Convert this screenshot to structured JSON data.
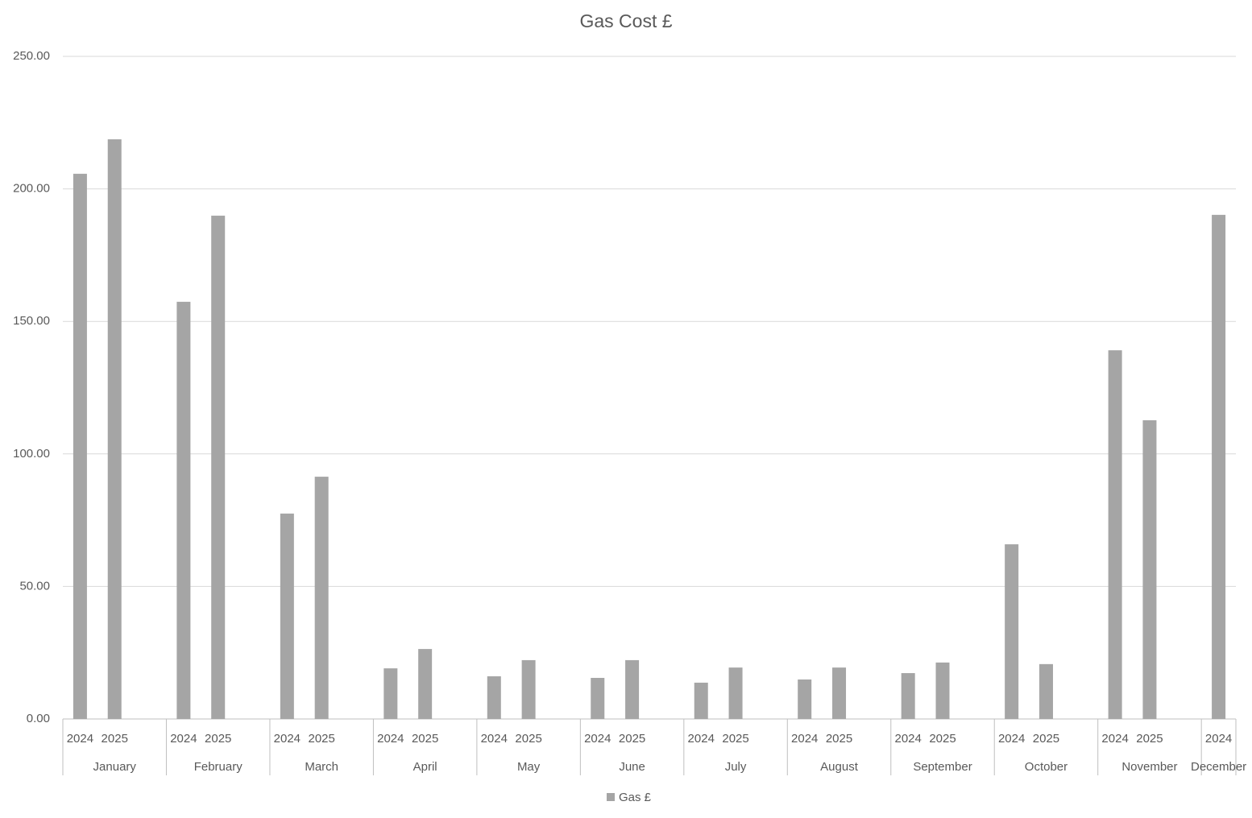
{
  "chart_data": {
    "type": "bar",
    "title": "Gas Cost £",
    "series_name": "Gas £",
    "color": "#a5a5a5",
    "groups": [
      {
        "label": "January",
        "categories": [
          "2024",
          "2025",
          null
        ],
        "values": [
          205.7,
          218.7,
          null
        ]
      },
      {
        "label": "February",
        "categories": [
          "2024",
          "2025",
          null
        ],
        "values": [
          157.4,
          189.9,
          null
        ]
      },
      {
        "label": "March",
        "categories": [
          "2024",
          "2025",
          null
        ],
        "values": [
          77.5,
          91.4,
          null
        ]
      },
      {
        "label": "April",
        "categories": [
          "2024",
          "2025",
          null
        ],
        "values": [
          19.1,
          26.4,
          null
        ]
      },
      {
        "label": "May",
        "categories": [
          "2024",
          "2025",
          null
        ],
        "values": [
          16.1,
          22.2,
          null
        ]
      },
      {
        "label": "June",
        "categories": [
          "2024",
          "2025",
          null
        ],
        "values": [
          15.5,
          22.2,
          null
        ]
      },
      {
        "label": "July",
        "categories": [
          "2024",
          "2025",
          null
        ],
        "values": [
          13.7,
          19.4,
          null
        ]
      },
      {
        "label": "August",
        "categories": [
          "2024",
          "2025",
          null
        ],
        "values": [
          14.9,
          19.4,
          null
        ]
      },
      {
        "label": "September",
        "categories": [
          "2024",
          "2025",
          null
        ],
        "values": [
          17.3,
          21.3,
          null
        ]
      },
      {
        "label": "October",
        "categories": [
          "2024",
          "2025",
          null
        ],
        "values": [
          65.9,
          20.7,
          null
        ]
      },
      {
        "label": "November",
        "categories": [
          "2024",
          "2025",
          null
        ],
        "values": [
          139.1,
          112.7,
          null
        ]
      },
      {
        "label": "December",
        "categories": [
          "2024"
        ],
        "values": [
          190.2
        ]
      }
    ],
    "ylim": [
      0,
      250
    ],
    "yticks": [
      {
        "value": 0,
        "label": "0.00"
      },
      {
        "value": 50,
        "label": "50.00"
      },
      {
        "value": 100,
        "label": "100.00"
      },
      {
        "value": 150,
        "label": "150.00"
      },
      {
        "value": 200,
        "label": "200.00"
      },
      {
        "value": 250,
        "label": "250.00"
      }
    ],
    "grid": true
  }
}
